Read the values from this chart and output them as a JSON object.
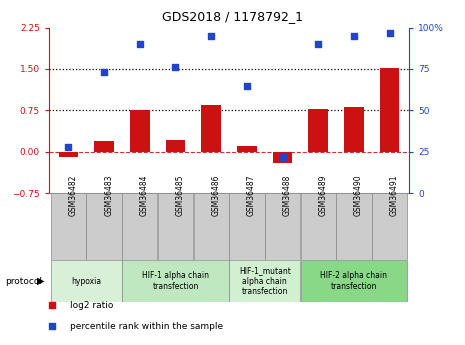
{
  "title": "GDS2018 / 1178792_1",
  "samples": [
    "GSM36482",
    "GSM36483",
    "GSM36484",
    "GSM36485",
    "GSM36486",
    "GSM36487",
    "GSM36488",
    "GSM36489",
    "GSM36490",
    "GSM36491"
  ],
  "log2_ratio": [
    -0.1,
    0.2,
    0.75,
    0.22,
    0.85,
    0.1,
    -0.2,
    0.78,
    0.82,
    1.52
  ],
  "percentile_rank": [
    28,
    73,
    90,
    76,
    95,
    65,
    22,
    90,
    95,
    97
  ],
  "ylim_left": [
    -0.75,
    2.25
  ],
  "ylim_right": [
    0,
    100
  ],
  "yticks_left": [
    -0.75,
    0,
    0.75,
    1.5,
    2.25
  ],
  "yticks_right": [
    0,
    25,
    50,
    75,
    100
  ],
  "hlines": [
    0.75,
    1.5
  ],
  "bar_color": "#cc1111",
  "dot_color": "#2244cc",
  "zero_line_color": "#cc3333",
  "protocols": [
    {
      "label": "hypoxia",
      "start": 0,
      "end": 1,
      "color": "#d8f0d8"
    },
    {
      "label": "HIF-1 alpha chain\ntransfection",
      "start": 2,
      "end": 4,
      "color": "#c0e8c0"
    },
    {
      "label": "HIF-1_mutant\nalpha chain\ntransfection",
      "start": 5,
      "end": 6,
      "color": "#d0f0d0"
    },
    {
      "label": "HIF-2 alpha chain\ntransfection",
      "start": 7,
      "end": 9,
      "color": "#88d888"
    }
  ],
  "legend_items": [
    {
      "label": "log2 ratio",
      "color": "#cc1111"
    },
    {
      "label": "percentile rank within the sample",
      "color": "#2244cc"
    }
  ],
  "bar_width": 0.55
}
